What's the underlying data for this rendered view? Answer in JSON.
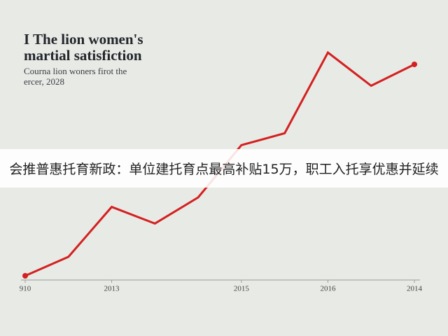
{
  "chart_data": {
    "type": "line",
    "title": [
      "I The lion women's",
      "martial satisfiction"
    ],
    "subtitle": [
      "Courna lion woners firot the",
      "ercer, 2028"
    ],
    "categories": [
      "910",
      null,
      "2013",
      null,
      null,
      "2015",
      null,
      "2016",
      null,
      "2014"
    ],
    "values": [
      2,
      10,
      31,
      24,
      35,
      57,
      62,
      96,
      82,
      91
    ],
    "color": "#d42020"
  },
  "banner": {
    "text": "会推普惠托育新政：单位建托育点最高补贴15万，职工入托享优惠并延续"
  }
}
